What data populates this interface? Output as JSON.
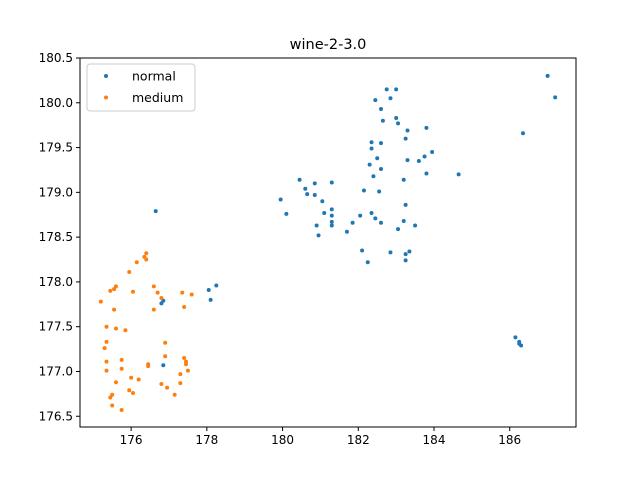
{
  "chart_data": {
    "type": "scatter",
    "title": "wine-2-3.0",
    "xlabel": "",
    "ylabel": "",
    "xlim": [
      174.65,
      187.75
    ],
    "ylim": [
      176.38,
      180.5
    ],
    "xticks": [
      176,
      178,
      180,
      182,
      184,
      186
    ],
    "xtick_labels": [
      "176",
      "178",
      "180",
      "182",
      "184",
      "186"
    ],
    "yticks": [
      176.5,
      177.0,
      177.5,
      178.0,
      178.5,
      179.0,
      179.5,
      180.0,
      180.5
    ],
    "ytick_labels": [
      "176.5",
      "177.0",
      "177.5",
      "178.0",
      "178.5",
      "179.0",
      "179.5",
      "180.0",
      "180.5"
    ],
    "grid": false,
    "legend": "top-left",
    "series": [
      {
        "name": "normal",
        "color": "#1f77b4",
        "points": [
          [
            182.75,
            180.15
          ],
          [
            183.0,
            180.15
          ],
          [
            182.85,
            180.05
          ],
          [
            182.45,
            180.03
          ],
          [
            187.0,
            180.3
          ],
          [
            187.2,
            180.06
          ],
          [
            182.6,
            179.93
          ],
          [
            183.0,
            179.83
          ],
          [
            182.65,
            179.8
          ],
          [
            183.05,
            179.77
          ],
          [
            183.8,
            179.72
          ],
          [
            183.3,
            179.69
          ],
          [
            186.35,
            179.66
          ],
          [
            183.25,
            179.6
          ],
          [
            182.35,
            179.56
          ],
          [
            182.6,
            179.55
          ],
          [
            182.35,
            179.49
          ],
          [
            183.95,
            179.45
          ],
          [
            183.75,
            179.4
          ],
          [
            182.5,
            179.38
          ],
          [
            183.3,
            179.36
          ],
          [
            183.6,
            179.35
          ],
          [
            182.3,
            179.31
          ],
          [
            182.6,
            179.26
          ],
          [
            183.8,
            179.21
          ],
          [
            184.65,
            179.2
          ],
          [
            182.4,
            179.18
          ],
          [
            183.2,
            179.14
          ],
          [
            180.45,
            179.14
          ],
          [
            180.85,
            179.1
          ],
          [
            181.3,
            179.11
          ],
          [
            180.6,
            179.04
          ],
          [
            182.15,
            179.02
          ],
          [
            182.55,
            179.01
          ],
          [
            180.65,
            178.98
          ],
          [
            180.85,
            178.97
          ],
          [
            179.95,
            178.92
          ],
          [
            181.05,
            178.9
          ],
          [
            183.25,
            178.86
          ],
          [
            181.3,
            178.81
          ],
          [
            176.65,
            178.79
          ],
          [
            182.35,
            178.77
          ],
          [
            181.1,
            178.77
          ],
          [
            180.1,
            178.76
          ],
          [
            182.05,
            178.74
          ],
          [
            181.3,
            178.74
          ],
          [
            182.45,
            178.71
          ],
          [
            183.2,
            178.68
          ],
          [
            181.3,
            178.67
          ],
          [
            182.6,
            178.66
          ],
          [
            181.85,
            178.66
          ],
          [
            183.5,
            178.63
          ],
          [
            180.9,
            178.63
          ],
          [
            181.3,
            178.63
          ],
          [
            183.05,
            178.59
          ],
          [
            181.7,
            178.56
          ],
          [
            180.95,
            178.52
          ],
          [
            182.1,
            178.35
          ],
          [
            183.35,
            178.34
          ],
          [
            182.85,
            178.33
          ],
          [
            183.25,
            178.31
          ],
          [
            183.25,
            178.24
          ],
          [
            182.25,
            178.22
          ],
          [
            178.25,
            177.96
          ],
          [
            178.05,
            177.91
          ],
          [
            178.1,
            177.8
          ],
          [
            176.85,
            177.79
          ],
          [
            176.8,
            177.76
          ],
          [
            186.15,
            177.38
          ],
          [
            186.25,
            177.33
          ],
          [
            186.25,
            177.31
          ],
          [
            186.3,
            177.29
          ],
          [
            176.85,
            177.07
          ]
        ]
      },
      {
        "name": "medium",
        "color": "#ff7f0e",
        "points": [
          [
            176.4,
            178.32
          ],
          [
            176.35,
            178.28
          ],
          [
            176.4,
            178.25
          ],
          [
            176.15,
            178.22
          ],
          [
            175.95,
            178.11
          ],
          [
            176.6,
            177.95
          ],
          [
            175.6,
            177.95
          ],
          [
            175.55,
            177.92
          ],
          [
            175.45,
            177.9
          ],
          [
            176.05,
            177.89
          ],
          [
            176.7,
            177.88
          ],
          [
            177.35,
            177.88
          ],
          [
            177.6,
            177.86
          ],
          [
            176.8,
            177.82
          ],
          [
            175.2,
            177.78
          ],
          [
            177.4,
            177.72
          ],
          [
            175.55,
            177.69
          ],
          [
            176.6,
            177.69
          ],
          [
            175.35,
            177.5
          ],
          [
            175.6,
            177.48
          ],
          [
            175.85,
            177.46
          ],
          [
            175.35,
            177.33
          ],
          [
            176.9,
            177.32
          ],
          [
            175.3,
            177.26
          ],
          [
            176.9,
            177.17
          ],
          [
            177.4,
            177.15
          ],
          [
            175.75,
            177.13
          ],
          [
            177.45,
            177.11
          ],
          [
            175.35,
            177.11
          ],
          [
            177.45,
            177.08
          ],
          [
            176.45,
            177.08
          ],
          [
            176.45,
            177.06
          ],
          [
            175.75,
            177.03
          ],
          [
            175.35,
            177.01
          ],
          [
            177.5,
            177.01
          ],
          [
            177.3,
            176.97
          ],
          [
            176.0,
            176.93
          ],
          [
            176.2,
            176.91
          ],
          [
            175.6,
            176.88
          ],
          [
            177.3,
            176.87
          ],
          [
            176.8,
            176.86
          ],
          [
            176.95,
            176.82
          ],
          [
            175.95,
            176.79
          ],
          [
            176.05,
            176.76
          ],
          [
            177.15,
            176.74
          ],
          [
            175.5,
            176.74
          ],
          [
            175.45,
            176.71
          ],
          [
            175.5,
            176.62
          ],
          [
            175.75,
            176.57
          ]
        ]
      }
    ]
  }
}
